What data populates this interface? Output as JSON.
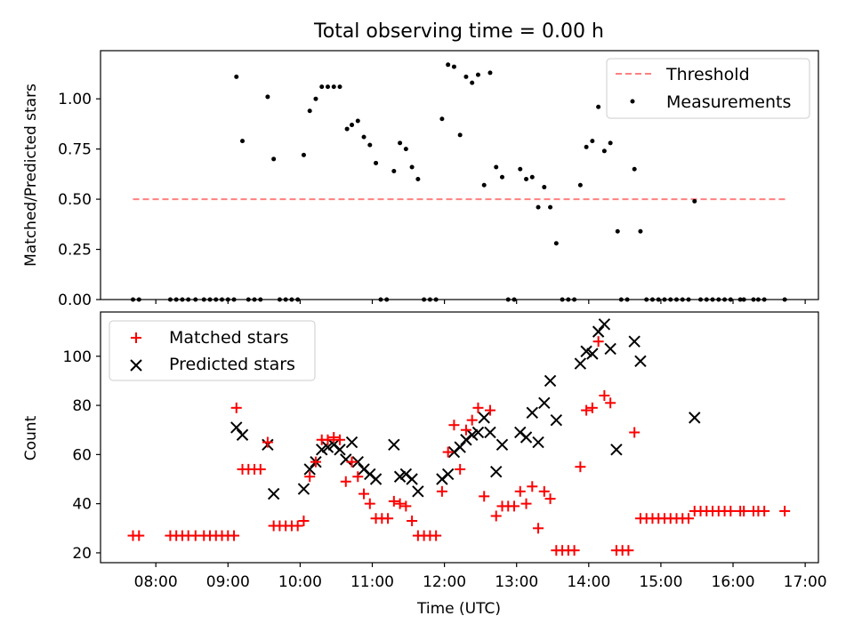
{
  "chart_data": [
    {
      "type": "scatter",
      "title": "Total observing time = 0.00 h",
      "xlabel": "",
      "ylabel": "Matched/Predicted stars",
      "xlim": [
        "07:14",
        "17:11"
      ],
      "ylim": [
        0,
        1.24
      ],
      "xticks": [
        "08:00",
        "09:00",
        "10:00",
        "11:00",
        "12:00",
        "13:00",
        "14:00",
        "15:00",
        "16:00",
        "17:00"
      ],
      "yticks": [
        "0.00",
        "0.25",
        "0.50",
        "0.75",
        "1.00"
      ],
      "grid": false,
      "legend_position": "top-right",
      "series": [
        {
          "name": "Threshold",
          "kind": "dashed-line",
          "color": "#ff8080",
          "points": [
            [
              "07:41",
              0.5
            ],
            [
              "16:44",
              0.5
            ]
          ]
        },
        {
          "name": "Measurements",
          "kind": "dots",
          "color": "#000000",
          "points": [
            [
              "07:41",
              0.0
            ],
            [
              "07:46",
              0.0
            ],
            [
              "08:12",
              0.0
            ],
            [
              "08:17",
              0.0
            ],
            [
              "08:22",
              0.0
            ],
            [
              "08:27",
              0.0
            ],
            [
              "08:33",
              0.0
            ],
            [
              "08:40",
              0.0
            ],
            [
              "08:45",
              0.0
            ],
            [
              "08:50",
              0.0
            ],
            [
              "08:55",
              0.0
            ],
            [
              "09:00",
              0.0
            ],
            [
              "09:05",
              0.0
            ],
            [
              "09:07",
              1.11
            ],
            [
              "09:12",
              0.79
            ],
            [
              "09:17",
              0.0
            ],
            [
              "09:22",
              0.0
            ],
            [
              "09:27",
              0.0
            ],
            [
              "09:33",
              1.01
            ],
            [
              "09:38",
              0.7
            ],
            [
              "09:43",
              0.0
            ],
            [
              "09:48",
              0.0
            ],
            [
              "09:53",
              0.0
            ],
            [
              "09:58",
              0.0
            ],
            [
              "10:03",
              0.72
            ],
            [
              "10:08",
              0.94
            ],
            [
              "10:13",
              1.0
            ],
            [
              "10:18",
              1.06
            ],
            [
              "10:23",
              1.06
            ],
            [
              "10:28",
              1.06
            ],
            [
              "10:33",
              1.06
            ],
            [
              "10:39",
              0.85
            ],
            [
              "10:43",
              0.87
            ],
            [
              "10:48",
              0.89
            ],
            [
              "10:53",
              0.81
            ],
            [
              "10:58",
              0.77
            ],
            [
              "11:03",
              0.68
            ],
            [
              "11:07",
              0.0
            ],
            [
              "11:12",
              0.0
            ],
            [
              "11:18",
              0.64
            ],
            [
              "11:23",
              0.78
            ],
            [
              "11:28",
              0.75
            ],
            [
              "11:33",
              0.66
            ],
            [
              "11:38",
              0.6
            ],
            [
              "11:43",
              0.0
            ],
            [
              "11:48",
              0.0
            ],
            [
              "11:53",
              0.0
            ],
            [
              "11:58",
              0.9
            ],
            [
              "12:03",
              1.17
            ],
            [
              "12:08",
              1.16
            ],
            [
              "12:13",
              0.82
            ],
            [
              "12:18",
              1.11
            ],
            [
              "12:23",
              1.08
            ],
            [
              "12:28",
              1.12
            ],
            [
              "12:33",
              0.57
            ],
            [
              "12:38",
              1.13
            ],
            [
              "12:43",
              0.66
            ],
            [
              "12:48",
              0.61
            ],
            [
              "12:53",
              0.0
            ],
            [
              "12:58",
              0.0
            ],
            [
              "13:03",
              0.65
            ],
            [
              "13:08",
              0.6
            ],
            [
              "13:13",
              0.61
            ],
            [
              "13:18",
              0.46
            ],
            [
              "13:23",
              0.56
            ],
            [
              "13:28",
              0.46
            ],
            [
              "13:33",
              0.28
            ],
            [
              "13:38",
              0.0
            ],
            [
              "13:43",
              0.0
            ],
            [
              "13:48",
              0.0
            ],
            [
              "13:53",
              0.57
            ],
            [
              "13:58",
              0.76
            ],
            [
              "14:03",
              0.79
            ],
            [
              "14:08",
              0.96
            ],
            [
              "14:13",
              0.74
            ],
            [
              "14:18",
              0.78
            ],
            [
              "14:24",
              0.34
            ],
            [
              "14:27",
              0.0
            ],
            [
              "14:32",
              0.0
            ],
            [
              "14:38",
              0.65
            ],
            [
              "14:43",
              0.34
            ],
            [
              "14:48",
              0.0
            ],
            [
              "14:53",
              0.0
            ],
            [
              "14:58",
              0.0
            ],
            [
              "15:03",
              0.0
            ],
            [
              "15:08",
              0.0
            ],
            [
              "15:13",
              0.0
            ],
            [
              "15:18",
              0.0
            ],
            [
              "15:23",
              0.0
            ],
            [
              "15:28",
              0.49
            ],
            [
              "15:33",
              0.0
            ],
            [
              "15:38",
              0.0
            ],
            [
              "15:43",
              0.0
            ],
            [
              "15:48",
              0.0
            ],
            [
              "15:53",
              0.0
            ],
            [
              "15:58",
              0.0
            ],
            [
              "16:06",
              0.0
            ],
            [
              "16:09",
              0.0
            ],
            [
              "16:17",
              0.0
            ],
            [
              "16:21",
              0.0
            ],
            [
              "16:26",
              0.0
            ],
            [
              "16:43",
              0.0
            ]
          ]
        }
      ]
    },
    {
      "type": "scatter",
      "title": "",
      "xlabel": "Time (UTC)",
      "ylabel": "Count",
      "xlim": [
        "07:14",
        "17:11"
      ],
      "ylim": [
        16,
        118
      ],
      "xticks": [
        "08:00",
        "09:00",
        "10:00",
        "11:00",
        "12:00",
        "13:00",
        "14:00",
        "15:00",
        "16:00",
        "17:00"
      ],
      "yticks": [
        "20",
        "40",
        "60",
        "80",
        "100"
      ],
      "grid": false,
      "legend_position": "top-left",
      "series": [
        {
          "name": "Matched stars",
          "marker": "plus",
          "color": "#ff0000",
          "points": [
            [
              "07:41",
              27
            ],
            [
              "07:46",
              27
            ],
            [
              "08:12",
              27
            ],
            [
              "08:17",
              27
            ],
            [
              "08:22",
              27
            ],
            [
              "08:27",
              27
            ],
            [
              "08:33",
              27
            ],
            [
              "08:40",
              27
            ],
            [
              "08:45",
              27
            ],
            [
              "08:50",
              27
            ],
            [
              "08:55",
              27
            ],
            [
              "09:00",
              27
            ],
            [
              "09:05",
              27
            ],
            [
              "09:07",
              79
            ],
            [
              "09:12",
              54
            ],
            [
              "09:17",
              54
            ],
            [
              "09:22",
              54
            ],
            [
              "09:27",
              54
            ],
            [
              "09:33",
              65
            ],
            [
              "09:38",
              31
            ],
            [
              "09:43",
              31
            ],
            [
              "09:48",
              31
            ],
            [
              "09:53",
              31
            ],
            [
              "09:58",
              31
            ],
            [
              "10:03",
              33
            ],
            [
              "10:08",
              51
            ],
            [
              "10:13",
              57
            ],
            [
              "10:18",
              66
            ],
            [
              "10:23",
              66
            ],
            [
              "10:28",
              67
            ],
            [
              "10:33",
              66
            ],
            [
              "10:38",
              49
            ],
            [
              "10:43",
              57
            ],
            [
              "10:48",
              51
            ],
            [
              "10:53",
              44
            ],
            [
              "10:58",
              40
            ],
            [
              "11:03",
              34
            ],
            [
              "11:08",
              34
            ],
            [
              "11:13",
              34
            ],
            [
              "11:18",
              41
            ],
            [
              "11:23",
              40
            ],
            [
              "11:28",
              39
            ],
            [
              "11:33",
              33
            ],
            [
              "11:38",
              27
            ],
            [
              "11:43",
              27
            ],
            [
              "11:48",
              27
            ],
            [
              "11:53",
              27
            ],
            [
              "11:58",
              45
            ],
            [
              "12:03",
              61
            ],
            [
              "12:08",
              72
            ],
            [
              "12:13",
              54
            ],
            [
              "12:18",
              70
            ],
            [
              "12:23",
              74
            ],
            [
              "12:28",
              79
            ],
            [
              "12:33",
              43
            ],
            [
              "12:38",
              78
            ],
            [
              "12:43",
              35
            ],
            [
              "12:48",
              39
            ],
            [
              "12:53",
              39
            ],
            [
              "12:58",
              39
            ],
            [
              "13:03",
              45
            ],
            [
              "13:08",
              40
            ],
            [
              "13:13",
              47
            ],
            [
              "13:18",
              30
            ],
            [
              "13:23",
              45
            ],
            [
              "13:28",
              42
            ],
            [
              "13:33",
              21
            ],
            [
              "13:38",
              21
            ],
            [
              "13:43",
              21
            ],
            [
              "13:48",
              21
            ],
            [
              "13:53",
              55
            ],
            [
              "13:58",
              78
            ],
            [
              "14:03",
              79
            ],
            [
              "14:08",
              106
            ],
            [
              "14:13",
              84
            ],
            [
              "14:18",
              81
            ],
            [
              "14:23",
              21
            ],
            [
              "14:28",
              21
            ],
            [
              "14:33",
              21
            ],
            [
              "14:38",
              69
            ],
            [
              "14:43",
              34
            ],
            [
              "14:48",
              34
            ],
            [
              "14:53",
              34
            ],
            [
              "14:58",
              34
            ],
            [
              "15:03",
              34
            ],
            [
              "15:08",
              34
            ],
            [
              "15:13",
              34
            ],
            [
              "15:18",
              34
            ],
            [
              "15:23",
              34
            ],
            [
              "15:28",
              37
            ],
            [
              "15:33",
              37
            ],
            [
              "15:38",
              37
            ],
            [
              "15:43",
              37
            ],
            [
              "15:48",
              37
            ],
            [
              "15:53",
              37
            ],
            [
              "15:58",
              37
            ],
            [
              "16:06",
              37
            ],
            [
              "16:09",
              37
            ],
            [
              "16:17",
              37
            ],
            [
              "16:21",
              37
            ],
            [
              "16:26",
              37
            ],
            [
              "16:43",
              37
            ]
          ]
        },
        {
          "name": "Predicted stars",
          "marker": "x",
          "color": "#000000",
          "points": [
            [
              "09:07",
              71
            ],
            [
              "09:12",
              68
            ],
            [
              "09:33",
              64
            ],
            [
              "09:38",
              44
            ],
            [
              "10:03",
              46
            ],
            [
              "10:08",
              54
            ],
            [
              "10:13",
              57
            ],
            [
              "10:18",
              62
            ],
            [
              "10:23",
              63
            ],
            [
              "10:28",
              64
            ],
            [
              "10:33",
              62
            ],
            [
              "10:38",
              58
            ],
            [
              "10:43",
              65
            ],
            [
              "10:48",
              57
            ],
            [
              "10:53",
              54
            ],
            [
              "10:58",
              52
            ],
            [
              "11:03",
              50
            ],
            [
              "11:18",
              64
            ],
            [
              "11:23",
              51
            ],
            [
              "11:28",
              52
            ],
            [
              "11:33",
              50
            ],
            [
              "11:38",
              45
            ],
            [
              "11:58",
              50
            ],
            [
              "12:03",
              52
            ],
            [
              "12:08",
              61
            ],
            [
              "12:13",
              63
            ],
            [
              "12:18",
              66
            ],
            [
              "12:23",
              68
            ],
            [
              "12:28",
              69
            ],
            [
              "12:33",
              75
            ],
            [
              "12:38",
              69
            ],
            [
              "12:43",
              53
            ],
            [
              "12:48",
              64
            ],
            [
              "13:03",
              69
            ],
            [
              "13:08",
              67
            ],
            [
              "13:13",
              77
            ],
            [
              "13:18",
              65
            ],
            [
              "13:23",
              81
            ],
            [
              "13:28",
              90
            ],
            [
              "13:33",
              74
            ],
            [
              "13:53",
              97
            ],
            [
              "13:58",
              102
            ],
            [
              "14:03",
              101
            ],
            [
              "14:08",
              110
            ],
            [
              "14:13",
              113
            ],
            [
              "14:18",
              103
            ],
            [
              "14:23",
              62
            ],
            [
              "14:38",
              106
            ],
            [
              "14:43",
              98
            ],
            [
              "15:28",
              75
            ]
          ]
        }
      ]
    }
  ]
}
